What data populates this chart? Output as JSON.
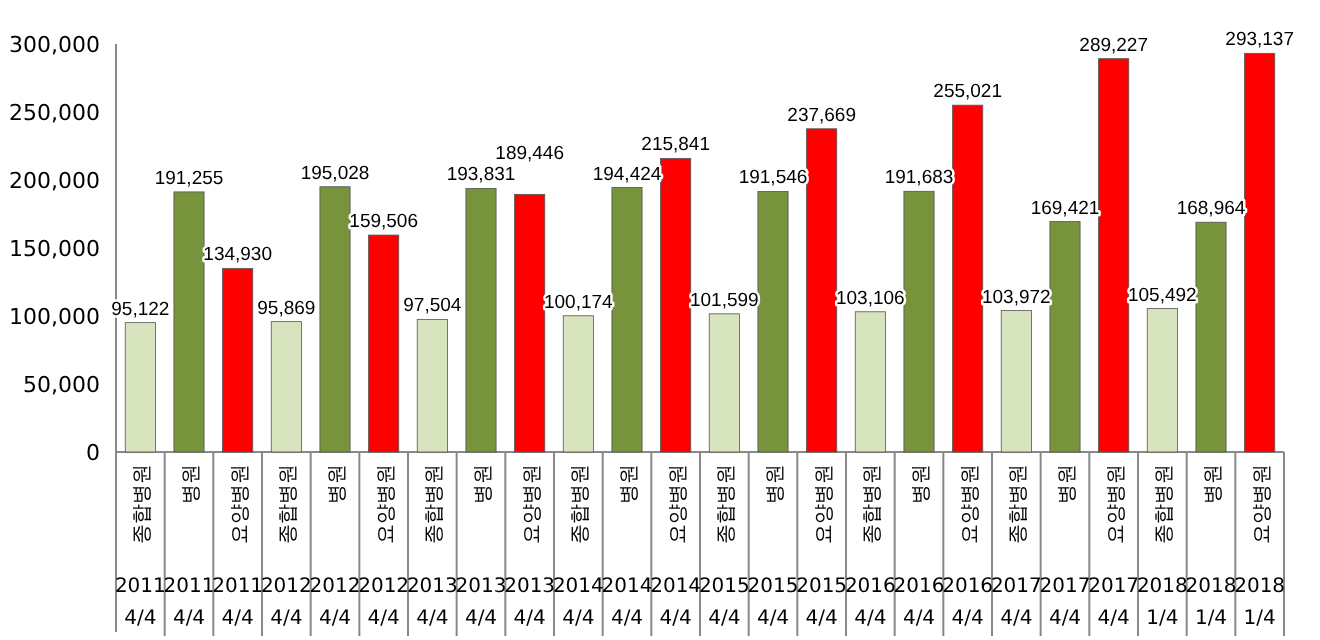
{
  "chart_data": {
    "type": "bar",
    "categories": [
      "종합병원\n2011\n4/4",
      "병원\n2011\n4/4",
      "요양병원\n2011\n4/4",
      "종합병원\n2012\n4/4",
      "병원\n2012\n4/4",
      "요양병원\n2012\n4/4",
      "종합병원\n2013\n4/4",
      "병원\n2013\n4/4",
      "요양병원\n2013\n4/4",
      "종합병원\n2014\n4/4",
      "병원\n2014\n4/4",
      "요양병원\n2014\n4/4",
      "종합병원\n2015\n4/4",
      "병원\n2015\n4/4",
      "요양병원\n2015\n4/4",
      "종합병원\n2016\n4/4",
      "병원\n2016\n4/4",
      "요양병원\n2016\n4/4",
      "종합병원\n2017\n4/4",
      "병원\n2017\n4/4",
      "요양병원\n2017\n4/4",
      "종합병원\n2018\n1/4",
      "병원\n2018\n1/4",
      "요양병원\n2018\n1/4"
    ],
    "values": [
      95122,
      191255,
      134930,
      95869,
      195028,
      159506,
      97504,
      193831,
      189446,
      100174,
      194424,
      215841,
      101599,
      191546,
      237669,
      103106,
      191683,
      255021,
      103972,
      169421,
      289227,
      105492,
      168964,
      293137
    ],
    "colors": [
      "#d7e4bd",
      "#77933c",
      "#ff0000",
      "#d7e4bd",
      "#77933c",
      "#ff0000",
      "#d7e4bd",
      "#77933c",
      "#ff0000",
      "#d7e4bd",
      "#77933c",
      "#ff0000",
      "#d7e4bd",
      "#77933c",
      "#ff0000",
      "#d7e4bd",
      "#77933c",
      "#ff0000",
      "#d7e4bd",
      "#77933c",
      "#ff0000",
      "#d7e4bd",
      "#77933c",
      "#ff0000"
    ],
    "ylim": [
      0,
      300000
    ],
    "yticks": [
      0,
      {
        "value": 50000,
        "label": "50,000"
      },
      {
        "value": 100000,
        "label": "100,000"
      },
      {
        "value": 150000,
        "label": "150,000"
      },
      {
        "value": 200000,
        "label": "200,000"
      },
      {
        "value": 250000,
        "label": "250,000"
      },
      {
        "value": 300000,
        "label": "300,000"
      }
    ],
    "value_labels": [
      "95,122",
      "191,255",
      "134,930",
      "95,869",
      "195,028",
      "159,506",
      "97,504",
      "193,831",
      "189,446",
      "100,174",
      "194,424",
      "215,841",
      "101,599",
      "191,546",
      "237,669",
      "103,106",
      "191,683",
      "255,021",
      "103,972",
      "169,421",
      "289,227",
      "105,492",
      "168,964",
      "293,137"
    ],
    "grid": false
  }
}
